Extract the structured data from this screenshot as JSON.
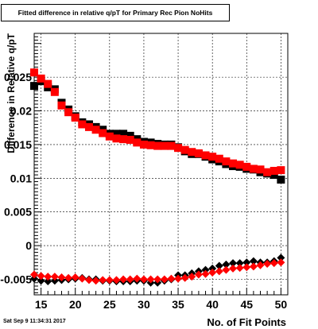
{
  "canvas": {
    "title": "Fitted difference in relative q/pT for Primary Rec Pion NoHits",
    "datestamp": "Sat Sep  9 11:34:31 2017"
  },
  "chart_data": {
    "type": "scatter",
    "title": "Fitted difference in relative q/pT for Primary Rec Pion NoHits",
    "xlabel": "No. of Fit Points",
    "ylabel": "Difference in Relative q/pT",
    "xlim": [
      14,
      51
    ],
    "ylim": [
      -0.0073,
      0.0315
    ],
    "xticks": [
      15,
      20,
      25,
      30,
      35,
      40,
      45,
      50
    ],
    "yticks": [
      -0.005,
      0,
      0.005,
      0.01,
      0.015,
      0.02,
      0.025
    ],
    "ytick_labels": [
      "-0.005",
      "0",
      "0.005",
      "0.01",
      "0.015",
      "0.02",
      "0.025"
    ],
    "grid": true,
    "series": [
      {
        "marker": "square",
        "color": "#000000",
        "x": [
          14,
          15,
          16,
          17,
          18,
          19,
          20,
          21,
          22,
          23,
          24,
          25,
          26,
          27,
          28,
          29,
          30,
          31,
          32,
          33,
          34,
          35,
          36,
          37,
          38,
          39,
          40,
          41,
          42,
          43,
          44,
          45,
          46,
          47,
          48,
          49,
          50
        ],
        "y": [
          0.0237,
          0.0244,
          0.0235,
          0.0232,
          0.0212,
          0.0202,
          0.0192,
          0.0183,
          0.018,
          0.0176,
          0.0172,
          0.0166,
          0.0166,
          0.0166,
          0.0163,
          0.0158,
          0.0154,
          0.0153,
          0.0151,
          0.015,
          0.015,
          0.0146,
          0.014,
          0.0136,
          0.0136,
          0.0132,
          0.0128,
          0.0125,
          0.0121,
          0.0118,
          0.0117,
          0.0114,
          0.0113,
          0.0109,
          0.0107,
          0.0105,
          0.0098
        ]
      },
      {
        "marker": "square",
        "color": "#ff0000",
        "x": [
          14,
          15,
          16,
          17,
          18,
          19,
          20,
          21,
          22,
          23,
          24,
          25,
          26,
          27,
          28,
          29,
          30,
          31,
          32,
          33,
          34,
          35,
          36,
          37,
          38,
          39,
          40,
          41,
          42,
          43,
          44,
          45,
          46,
          47,
          48,
          49,
          50
        ],
        "y": [
          0.0257,
          0.0248,
          0.024,
          0.0228,
          0.0208,
          0.0198,
          0.019,
          0.018,
          0.0176,
          0.0172,
          0.0167,
          0.0162,
          0.0159,
          0.0158,
          0.0157,
          0.0153,
          0.015,
          0.0149,
          0.0148,
          0.0148,
          0.0148,
          0.0145,
          0.0142,
          0.0139,
          0.0137,
          0.0134,
          0.0132,
          0.0129,
          0.0125,
          0.0122,
          0.012,
          0.0117,
          0.0114,
          0.0113,
          0.0109,
          0.0111,
          0.0112
        ]
      },
      {
        "marker": "diamond",
        "color": "#000000",
        "x": [
          14,
          15,
          16,
          17,
          18,
          19,
          20,
          21,
          22,
          23,
          24,
          25,
          26,
          27,
          28,
          29,
          30,
          31,
          32,
          33,
          34,
          35,
          36,
          37,
          38,
          39,
          40,
          41,
          42,
          43,
          44,
          45,
          46,
          47,
          48,
          49,
          50
        ],
        "y": [
          -0.0049,
          -0.0052,
          -0.0053,
          -0.0052,
          -0.0051,
          -0.005,
          -0.0049,
          -0.0048,
          -0.005,
          -0.005,
          -0.0052,
          -0.0052,
          -0.0053,
          -0.0053,
          -0.0053,
          -0.0052,
          -0.0052,
          -0.0055,
          -0.0055,
          -0.0052,
          -0.005,
          -0.0044,
          -0.0044,
          -0.0041,
          -0.0038,
          -0.0036,
          -0.0034,
          -0.003,
          -0.0028,
          -0.0026,
          -0.0026,
          -0.0025,
          -0.0023,
          -0.0025,
          -0.0025,
          -0.0023,
          -0.0018
        ]
      },
      {
        "marker": "diamond",
        "color": "#ff0000",
        "x": [
          14,
          15,
          16,
          17,
          18,
          19,
          20,
          21,
          22,
          23,
          24,
          25,
          26,
          27,
          28,
          29,
          30,
          31,
          32,
          33,
          34,
          35,
          36,
          37,
          38,
          39,
          40,
          41,
          42,
          43,
          44,
          45,
          46,
          47,
          48,
          49,
          50
        ],
        "y": [
          -0.0043,
          -0.0045,
          -0.0046,
          -0.0046,
          -0.0047,
          -0.0048,
          -0.0047,
          -0.0049,
          -0.0051,
          -0.0052,
          -0.0051,
          -0.0051,
          -0.0051,
          -0.005,
          -0.005,
          -0.0049,
          -0.005,
          -0.005,
          -0.005,
          -0.005,
          -0.0049,
          -0.0049,
          -0.0048,
          -0.0046,
          -0.0043,
          -0.0042,
          -0.004,
          -0.0038,
          -0.0036,
          -0.0034,
          -0.0033,
          -0.0032,
          -0.0031,
          -0.0029,
          -0.0027,
          -0.0026,
          -0.0025
        ]
      }
    ]
  }
}
